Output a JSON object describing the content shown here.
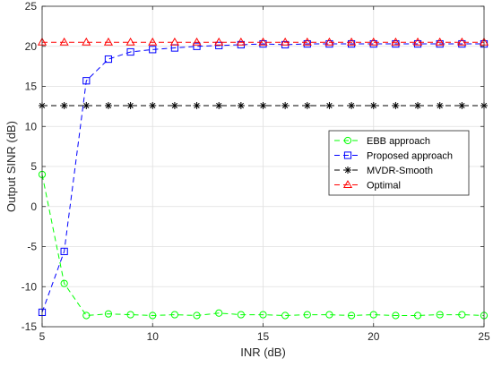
{
  "chart_data": {
    "type": "line",
    "xlabel": "INR (dB)",
    "ylabel": "Output SINR (dB)",
    "xlim": [
      5,
      25
    ],
    "ylim": [
      -15,
      25
    ],
    "xticks": [
      5,
      10,
      15,
      20,
      25
    ],
    "yticks": [
      -15,
      -10,
      -5,
      0,
      5,
      10,
      15,
      20,
      25
    ],
    "grid": true,
    "legend_position": "right-middle",
    "x": [
      5,
      6,
      7,
      8,
      9,
      10,
      11,
      12,
      13,
      14,
      15,
      16,
      17,
      18,
      19,
      20,
      21,
      22,
      23,
      24,
      25
    ],
    "series": [
      {
        "name": "EBB approach",
        "color": "#00ff00",
        "marker": "circle",
        "values": [
          4.0,
          -9.6,
          -13.6,
          -13.4,
          -13.5,
          -13.6,
          -13.5,
          -13.6,
          -13.3,
          -13.5,
          -13.5,
          -13.6,
          -13.5,
          -13.5,
          -13.6,
          -13.5,
          -13.6,
          -13.6,
          -13.5,
          -13.5,
          -13.6
        ]
      },
      {
        "name": "Proposed approach",
        "color": "#0000ff",
        "marker": "square",
        "values": [
          -13.2,
          -5.6,
          15.7,
          18.4,
          19.3,
          19.6,
          19.8,
          20.0,
          20.1,
          20.2,
          20.3,
          20.2,
          20.3,
          20.3,
          20.3,
          20.3,
          20.3,
          20.3,
          20.3,
          20.3,
          20.3
        ]
      },
      {
        "name": "MVDR-Smooth",
        "color": "#000000",
        "marker": "asterisk",
        "values": [
          12.6,
          12.6,
          12.6,
          12.6,
          12.6,
          12.6,
          12.6,
          12.6,
          12.6,
          12.6,
          12.6,
          12.6,
          12.6,
          12.6,
          12.6,
          12.6,
          12.6,
          12.6,
          12.6,
          12.6,
          12.6
        ]
      },
      {
        "name": "Optimal",
        "color": "#ff0000",
        "marker": "triangle",
        "values": [
          20.5,
          20.5,
          20.5,
          20.5,
          20.5,
          20.5,
          20.5,
          20.5,
          20.5,
          20.5,
          20.5,
          20.5,
          20.5,
          20.5,
          20.5,
          20.5,
          20.5,
          20.5,
          20.5,
          20.5,
          20.5
        ]
      }
    ]
  }
}
